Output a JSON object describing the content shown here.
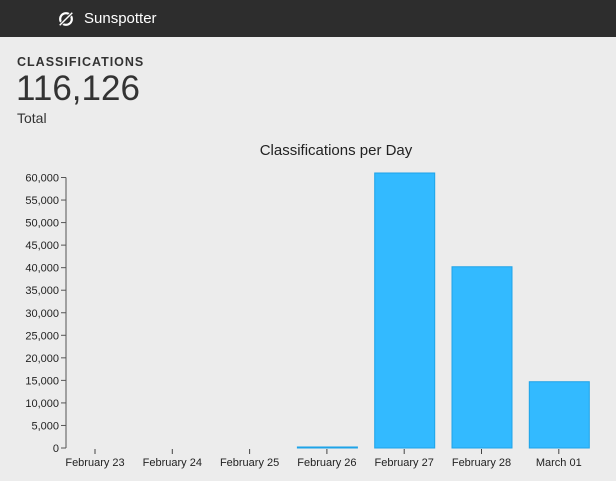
{
  "header": {
    "app_name": "Sunspotter",
    "logo_icon": "sunspot-compass-icon"
  },
  "stats": {
    "label": "CLASSIFICATIONS",
    "value": "116,126",
    "sublabel": "Total"
  },
  "colors": {
    "bar_fill": "#33baff",
    "bar_stroke": "#1fa3e8",
    "topbar": "#2d2d2d",
    "background": "#ececec"
  },
  "chart_data": {
    "type": "bar",
    "title": "Classifications per Day",
    "xlabel": "",
    "ylabel": "",
    "categories": [
      "February 23",
      "February 24",
      "February 25",
      "February 26",
      "February 27",
      "February 28",
      "March 01"
    ],
    "values": [
      0,
      0,
      0,
      226,
      61000,
      40200,
      14700
    ],
    "ylim": [
      0,
      60000
    ],
    "yticks": [
      0,
      5000,
      10000,
      15000,
      20000,
      25000,
      30000,
      35000,
      40000,
      45000,
      50000,
      55000,
      60000
    ],
    "ytick_labels": [
      "0",
      "5,000",
      "10,000",
      "15,000",
      "20,000",
      "25,000",
      "30,000",
      "35,000",
      "40,000",
      "45,000",
      "50,000",
      "55,000",
      "60,000"
    ],
    "grid": false,
    "legend": null
  }
}
